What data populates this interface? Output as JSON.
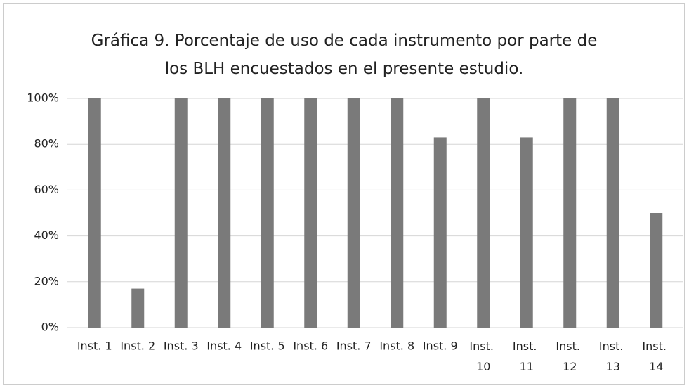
{
  "chart_data": {
    "type": "bar",
    "title": "Gráfica 9. Porcentaje de uso de cada instrumento por parte de los BLH encuestados en el presente estudio.",
    "categories": [
      "Inst. 1",
      "Inst. 2",
      "Inst. 3",
      "Inst. 4",
      "Inst. 5",
      "Inst. 6",
      "Inst. 7",
      "Inst. 8",
      "Inst. 9",
      "Inst. 10",
      "Inst. 11",
      "Inst. 12",
      "Inst. 13",
      "Inst. 14"
    ],
    "values": [
      100,
      17,
      100,
      100,
      100,
      100,
      100,
      100,
      83,
      100,
      83,
      100,
      100,
      50
    ],
    "color": "#7a7a7a",
    "ylim": [
      0,
      100
    ],
    "yticks": [
      {
        "value": 0,
        "label": "0%"
      },
      {
        "value": 20,
        "label": "20%"
      },
      {
        "value": 40,
        "label": "40%"
      },
      {
        "value": 60,
        "label": "60%"
      },
      {
        "value": 80,
        "label": "80%"
      },
      {
        "value": 100,
        "label": "100%"
      }
    ],
    "grid": true
  }
}
